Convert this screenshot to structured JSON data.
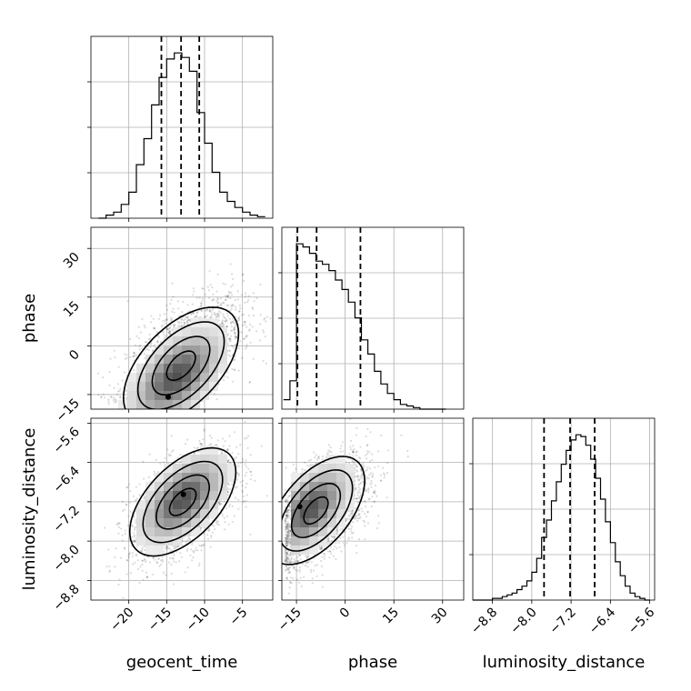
{
  "chart_data": {
    "type": "corner",
    "grid": true,
    "parameters": [
      "geocent_time",
      "phase",
      "luminosity_distance"
    ],
    "axis_labels": {
      "bottom": [
        "geocent_time",
        "phase",
        "luminosity_distance"
      ],
      "left": [
        "phase",
        "luminosity_distance"
      ]
    },
    "ranges": {
      "geocent_time": [
        -25,
        -1
      ],
      "phase": [
        -19.5,
        36.5
      ],
      "luminosity_distance": [
        -9.2,
        -5.5
      ]
    },
    "ticks": {
      "geocent_time": [
        {
          "v": -20,
          "label": "−20"
        },
        {
          "v": -15,
          "label": "−15"
        },
        {
          "v": -10,
          "label": "−10"
        },
        {
          "v": -5,
          "label": "−5"
        }
      ],
      "phase": [
        {
          "v": -15,
          "label": "−15"
        },
        {
          "v": 0,
          "label": "0"
        },
        {
          "v": 15,
          "label": "15"
        },
        {
          "v": 30,
          "label": "30"
        }
      ],
      "luminosity_distance": [
        {
          "v": -8.8,
          "label": "−8.8"
        },
        {
          "v": -8.0,
          "label": "−8.0"
        },
        {
          "v": -7.2,
          "label": "−7.2"
        },
        {
          "v": -6.4,
          "label": "−6.4"
        },
        {
          "v": -5.6,
          "label": "−5.6"
        }
      ]
    },
    "histograms": [
      {
        "parameter": "geocent_time",
        "bin_edges": [
          -24,
          -23,
          -22,
          -21,
          -20,
          -19,
          -18,
          -17,
          -16,
          -15,
          -14,
          -13,
          -12,
          -11,
          -10,
          -9,
          -8,
          -7,
          -6,
          -5,
          -4,
          -3,
          -2
        ],
        "counts": [
          0,
          2,
          4,
          9,
          17,
          35,
          52,
          74,
          92,
          104,
          108,
          105,
          96,
          69,
          49,
          30,
          17,
          11,
          7,
          4,
          2,
          1
        ],
        "quantiles": [
          -15.7,
          -13.1,
          -10.7
        ]
      },
      {
        "parameter": "phase",
        "bin_edges": [
          -19,
          -17,
          -15,
          -13,
          -11,
          -9,
          -7,
          -5,
          -3,
          -1,
          1,
          3,
          5,
          7,
          9,
          11,
          13,
          15,
          17,
          19,
          21,
          23,
          25,
          27,
          29,
          31
        ],
        "counts": [
          6,
          18,
          105,
          103,
          99,
          94,
          92,
          88,
          82,
          76,
          68,
          58,
          44,
          35,
          24,
          16,
          10,
          6,
          3,
          2,
          1,
          0,
          0,
          0,
          0
        ],
        "quantiles": [
          -14.7,
          -8.8,
          4.7
        ]
      },
      {
        "parameter": "luminosity_distance",
        "bin_edges": [
          -9.2,
          -9.1,
          -9.0,
          -8.9,
          -8.8,
          -8.7,
          -8.6,
          -8.5,
          -8.4,
          -8.3,
          -8.2,
          -8.1,
          -8.0,
          -7.9,
          -7.8,
          -7.7,
          -7.6,
          -7.5,
          -7.4,
          -7.3,
          -7.2,
          -7.1,
          -7.0,
          -6.9,
          -6.8,
          -6.7,
          -6.6,
          -6.5,
          -6.4,
          -6.3,
          -6.2,
          -6.1,
          -6.0,
          -5.9,
          -5.8,
          -5.7,
          -5.6
        ],
        "counts": [
          0,
          0,
          0,
          0,
          1,
          1,
          2,
          3,
          4,
          6,
          8,
          11,
          16,
          24,
          36,
          46,
          57,
          68,
          78,
          86,
          92,
          95,
          94,
          89,
          81,
          70,
          58,
          45,
          33,
          22,
          14,
          8,
          4,
          2,
          1,
          0
        ],
        "quantiles": [
          -7.75,
          -7.22,
          -6.72
        ]
      }
    ],
    "pairs": [
      {
        "x": "geocent_time",
        "y": "phase",
        "mean": [
          -12.6,
          -3.2
        ],
        "sd": [
          3.8,
          9.0
        ],
        "rho": 0.55,
        "mode": [
          -14.8,
          -15.8
        ],
        "levels": [
          0.5,
          1.0,
          1.5,
          2.0
        ]
      },
      {
        "x": "geocent_time",
        "y": "luminosity_distance",
        "mean": [
          -12.9,
          -7.25
        ],
        "sd": [
          3.5,
          0.55
        ],
        "rho": 0.55,
        "mode": [
          -12.8,
          -7.05
        ],
        "levels": [
          0.5,
          1.0,
          1.5,
          2.0
        ]
      },
      {
        "x": "phase",
        "y": "luminosity_distance",
        "mean": [
          -7.5,
          -7.4
        ],
        "sd": [
          7.5,
          0.55
        ],
        "rho": 0.55,
        "mode": [
          -14.0,
          -7.3
        ],
        "levels": [
          0.5,
          1.0,
          1.5,
          2.0
        ]
      }
    ]
  }
}
